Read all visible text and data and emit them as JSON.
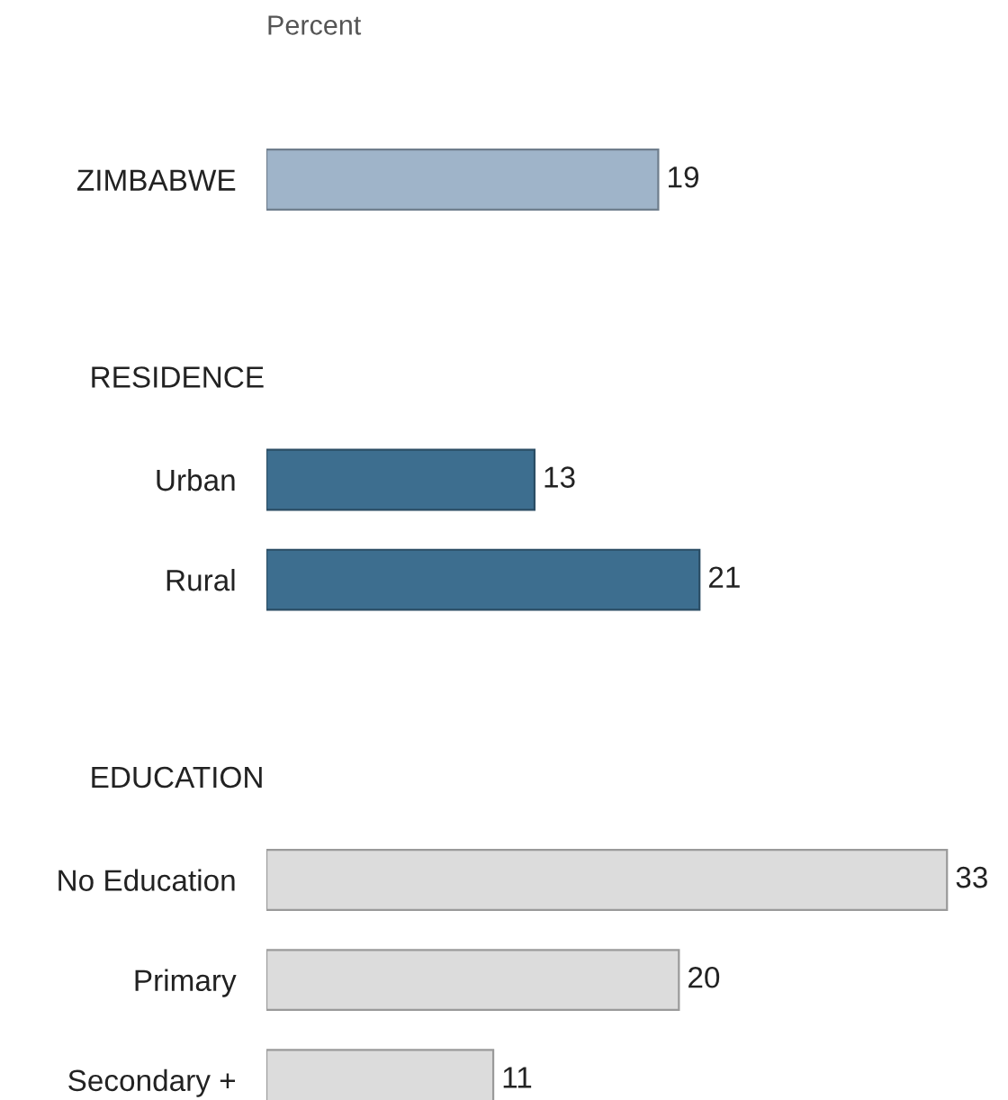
{
  "chart_data": {
    "type": "bar",
    "orientation": "horizontal",
    "title": "Percent",
    "categories": [
      "ZIMBABWE",
      null,
      "RESIDENCE",
      "Urban",
      "Rural",
      null,
      "EDUCATION",
      "No Education",
      "Primary",
      "Secondary +"
    ],
    "values": [
      19,
      null,
      null,
      13,
      21,
      null,
      null,
      33,
      20,
      11
    ],
    "colors": [
      "#9fb4c9",
      null,
      null,
      "#3d6e8f",
      "#3d6e8f",
      null,
      null,
      "#dcdcdc",
      "#dcdcdc",
      "#dcdcdc"
    ],
    "data_labels": true,
    "tick_labels": "y",
    "grid": false,
    "legend": false
  }
}
